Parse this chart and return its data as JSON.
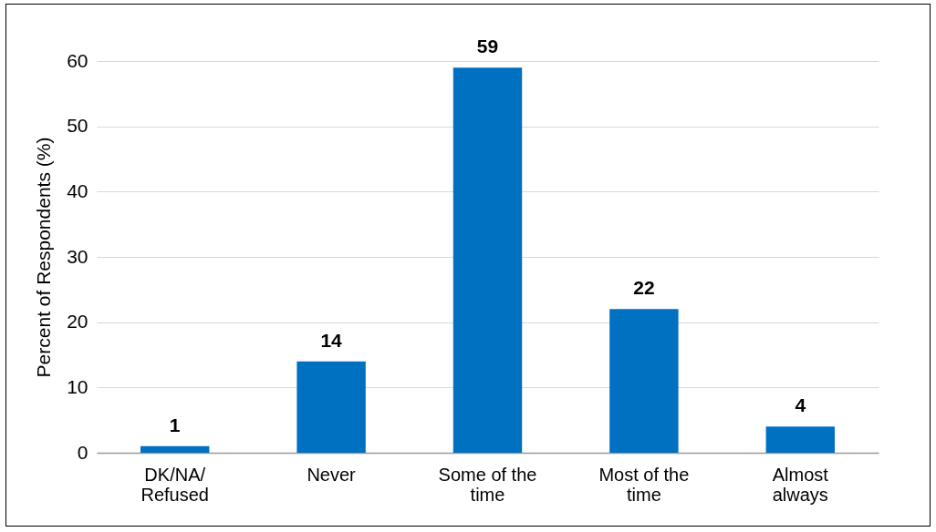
{
  "chart_data": {
    "type": "bar",
    "ylabel": "Percent of Respondents (%)",
    "categories": [
      "DK/NA/Refused",
      "Never",
      "Some of the time",
      "Most of the time",
      "Almost always"
    ],
    "values": [
      1,
      14,
      59,
      22,
      4
    ],
    "color": "#0070c0",
    "ylim": [
      0,
      60
    ],
    "yticks": [
      0,
      10,
      20,
      30,
      40,
      50,
      60
    ],
    "grid": "y",
    "data_labels": true
  }
}
